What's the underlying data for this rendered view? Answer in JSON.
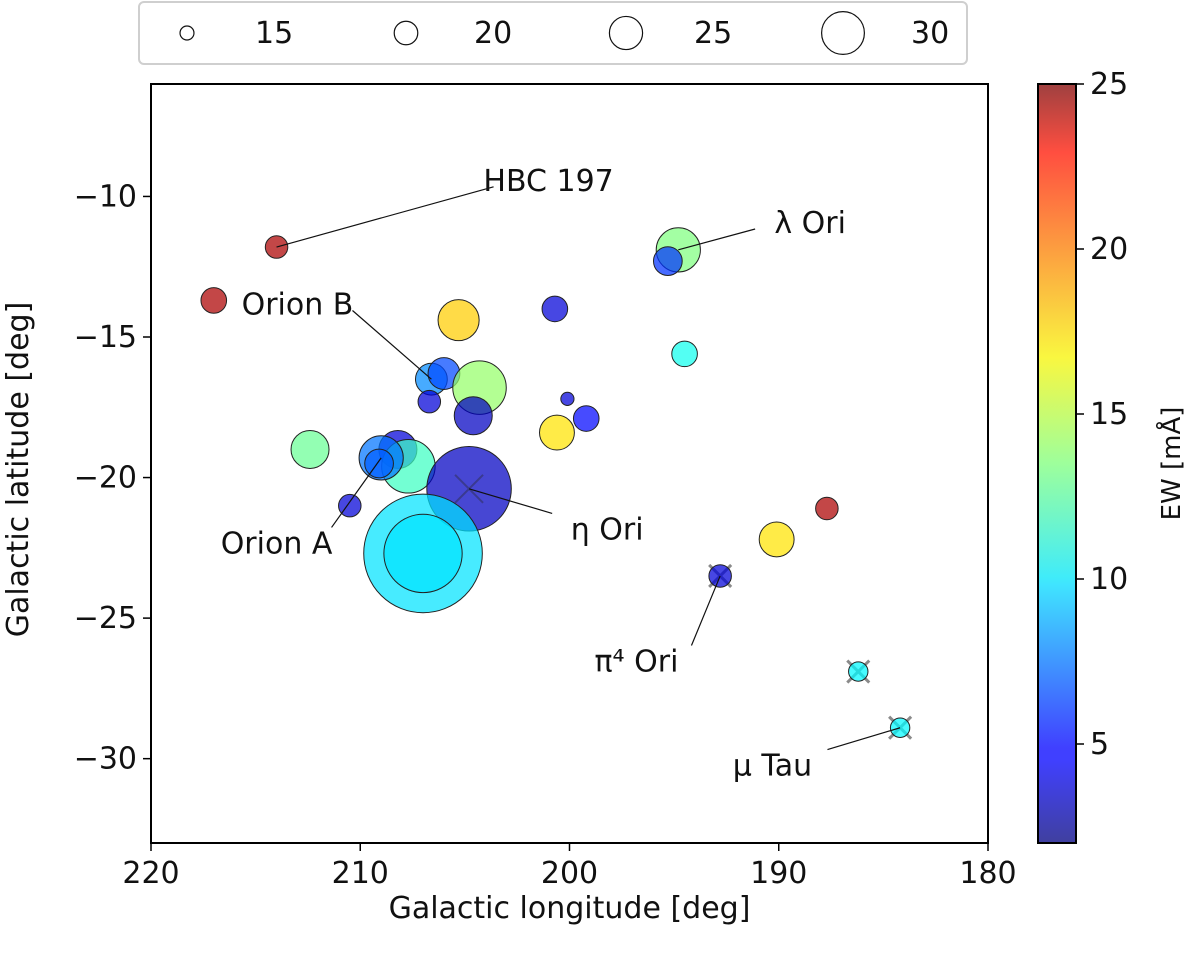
{
  "chart_data": {
    "type": "scatter",
    "xlabel": "Galactic longitude [deg]",
    "ylabel": "Galactic latitude [deg]",
    "xlim": [
      220,
      180
    ],
    "ylim": [
      -33,
      -6
    ],
    "xticks": [
      220,
      210,
      200,
      190,
      180
    ],
    "xtick_labels": [
      "220",
      "210",
      "200",
      "190",
      "180"
    ],
    "yticks": [
      -10,
      -15,
      -20,
      -25,
      -30
    ],
    "ytick_labels": [
      "−10",
      "−15",
      "−20",
      "−25",
      "−30"
    ],
    "colorbar": {
      "label": "EW [mÅ]",
      "range": [
        2,
        25
      ],
      "ticks": [
        5,
        10,
        15,
        20,
        25
      ],
      "tick_labels": [
        "5",
        "10",
        "15",
        "20",
        "25"
      ],
      "colormap": "jet"
    },
    "size_legend": {
      "values": [
        15,
        20,
        25,
        30
      ],
      "labels": [
        "15",
        "20",
        "25",
        "30"
      ],
      "position": "top"
    },
    "points": [
      {
        "l": 214.0,
        "b": -11.8,
        "ew": 24.0,
        "size": 15
      },
      {
        "l": 217.0,
        "b": -13.7,
        "ew": 24.0,
        "size": 16
      },
      {
        "l": 194.8,
        "b": -11.9,
        "ew": 13.5,
        "size": 22
      },
      {
        "l": 195.3,
        "b": -12.3,
        "ew": 6.0,
        "size": 17
      },
      {
        "l": 205.3,
        "b": -14.4,
        "ew": 17.5,
        "size": 21
      },
      {
        "l": 200.7,
        "b": -14.0,
        "ew": 4.0,
        "size": 16
      },
      {
        "l": 194.5,
        "b": -15.6,
        "ew": 11.0,
        "size": 16
      },
      {
        "l": 206.6,
        "b": -16.5,
        "ew": 8.0,
        "size": 18
      },
      {
        "l": 206.0,
        "b": -16.3,
        "ew": 6.5,
        "size": 18
      },
      {
        "l": 204.3,
        "b": -16.8,
        "ew": 14.0,
        "size": 25
      },
      {
        "l": 206.7,
        "b": -17.3,
        "ew": 4.0,
        "size": 15
      },
      {
        "l": 204.6,
        "b": -17.8,
        "ew": 3.5,
        "size": 20
      },
      {
        "l": 200.1,
        "b": -17.2,
        "ew": 4.0,
        "size": 12
      },
      {
        "l": 199.2,
        "b": -17.9,
        "ew": 5.0,
        "size": 16
      },
      {
        "l": 200.6,
        "b": -18.4,
        "ew": 17.0,
        "size": 19
      },
      {
        "l": 212.4,
        "b": -19.0,
        "ew": 13.0,
        "size": 20
      },
      {
        "l": 208.2,
        "b": -19.0,
        "ew": 4.0,
        "size": 20
      },
      {
        "l": 207.7,
        "b": -19.6,
        "ew": 12.0,
        "size": 25
      },
      {
        "l": 209.0,
        "b": -19.3,
        "ew": 7.5,
        "size": 22
      },
      {
        "l": 209.1,
        "b": -19.5,
        "ew": 7.0,
        "size": 17
      },
      {
        "l": 204.8,
        "b": -20.4,
        "ew": 3.5,
        "size": 35
      },
      {
        "l": 210.5,
        "b": -21.0,
        "ew": 4.0,
        "size": 15
      },
      {
        "l": 187.7,
        "b": -21.1,
        "ew": 24.0,
        "size": 15
      },
      {
        "l": 190.1,
        "b": -22.2,
        "ew": 17.0,
        "size": 19
      },
      {
        "l": 207.0,
        "b": -22.7,
        "ew": 10.0,
        "size": 46
      },
      {
        "l": 207.0,
        "b": -22.7,
        "ew": 10.0,
        "size": 33
      },
      {
        "l": 192.8,
        "b": -23.5,
        "ew": 4.0,
        "size": 15,
        "cross": true
      },
      {
        "l": 186.2,
        "b": -26.9,
        "ew": 10.5,
        "size": 14,
        "cross": true
      },
      {
        "l": 184.2,
        "b": -28.9,
        "ew": 10.5,
        "size": 14,
        "cross": true
      }
    ],
    "annotations": [
      {
        "text": "HBC 197",
        "target": [
          214.0,
          -11.8
        ],
        "label_at": [
          201.0,
          -9.8
        ],
        "anchor": "middle"
      },
      {
        "text": "λ Ori",
        "target": [
          194.8,
          -11.9
        ],
        "label_at": [
          188.5,
          -11.3
        ],
        "anchor": "middle"
      },
      {
        "text": "Orion B",
        "target": [
          206.6,
          -16.5
        ],
        "label_at": [
          213.0,
          -14.2
        ],
        "anchor": "middle"
      },
      {
        "text": "Orion A",
        "target": [
          209.0,
          -19.3
        ],
        "label_at": [
          214.0,
          -22.7
        ],
        "anchor": "middle"
      },
      {
        "text": "η Ori",
        "target": [
          204.8,
          -20.4
        ],
        "label_at": [
          198.2,
          -22.2
        ],
        "anchor": "middle"
      },
      {
        "text": "π⁴ Ori",
        "target": [
          192.8,
          -23.5
        ],
        "label_at": [
          196.8,
          -26.9
        ],
        "anchor": "middle"
      },
      {
        "text": "μ Tau",
        "target": [
          184.2,
          -28.9
        ],
        "label_at": [
          190.3,
          -30.6
        ],
        "anchor": "middle"
      }
    ]
  }
}
